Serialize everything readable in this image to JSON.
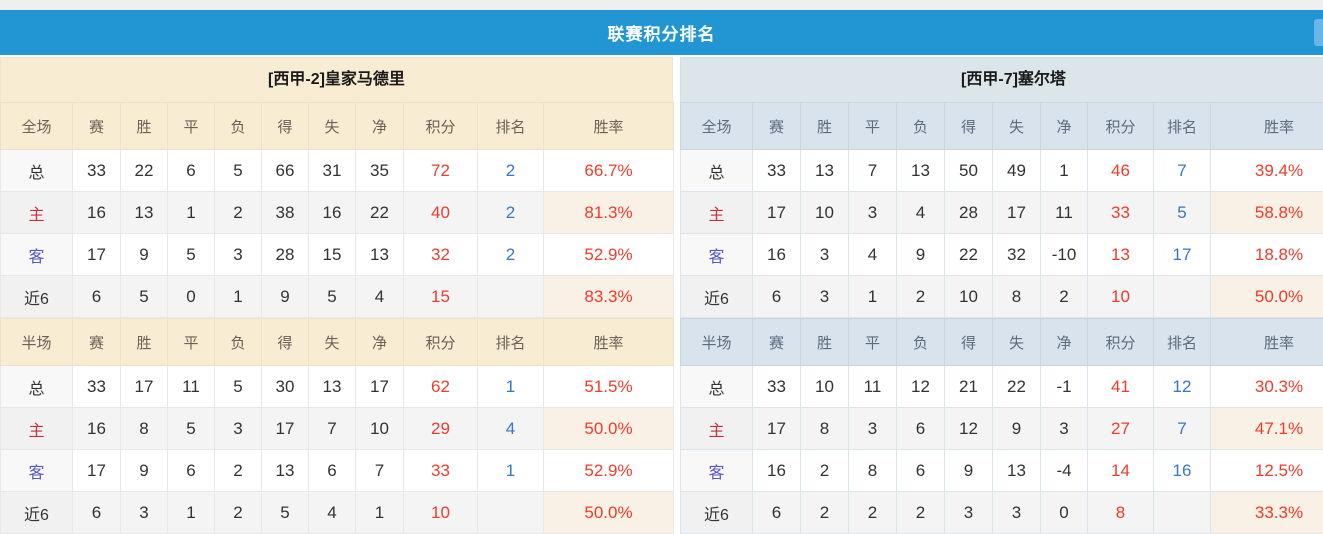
{
  "title": "联赛积分排名",
  "colors": {
    "title_bar": "#2196d3",
    "corner_button": "#6ab5e7",
    "left_header_bg": "#f8ecd2",
    "right_header_bg": "#d9e3ee",
    "points_rate_red": "#f03b2b",
    "rank_blue": "#3577c9",
    "home_label_red": "#c9303e",
    "away_label_blue": "#5a57c8",
    "alt_row_bg": "#f4f4f4",
    "alt_rate_bg": "#faf1e6"
  },
  "columns": {
    "full": [
      "全场",
      "赛",
      "胜",
      "平",
      "负",
      "得",
      "失",
      "净",
      "积分",
      "排名",
      "胜率"
    ],
    "half": [
      "半场",
      "赛",
      "胜",
      "平",
      "负",
      "得",
      "失",
      "净",
      "积分",
      "排名",
      "胜率"
    ]
  },
  "teams": [
    {
      "name": "[西甲-2]皇家马德里",
      "full": {
        "rows": [
          [
            "总",
            "33",
            "22",
            "6",
            "5",
            "66",
            "31",
            "35",
            "72",
            "2",
            "66.7%"
          ],
          [
            "主",
            "16",
            "13",
            "1",
            "2",
            "38",
            "16",
            "22",
            "40",
            "2",
            "81.3%"
          ],
          [
            "客",
            "17",
            "9",
            "5",
            "3",
            "28",
            "15",
            "13",
            "32",
            "2",
            "52.9%"
          ],
          [
            "近6",
            "6",
            "5",
            "0",
            "1",
            "9",
            "5",
            "4",
            "15",
            "",
            "83.3%"
          ]
        ]
      },
      "half": {
        "rows": [
          [
            "总",
            "33",
            "17",
            "11",
            "5",
            "30",
            "13",
            "17",
            "62",
            "1",
            "51.5%"
          ],
          [
            "主",
            "16",
            "8",
            "5",
            "3",
            "17",
            "7",
            "10",
            "29",
            "4",
            "50.0%"
          ],
          [
            "客",
            "17",
            "9",
            "6",
            "2",
            "13",
            "6",
            "7",
            "33",
            "1",
            "52.9%"
          ],
          [
            "近6",
            "6",
            "3",
            "1",
            "2",
            "5",
            "4",
            "1",
            "10",
            "",
            "50.0%"
          ]
        ]
      }
    },
    {
      "name": "[西甲-7]塞尔塔",
      "full": {
        "rows": [
          [
            "总",
            "33",
            "13",
            "7",
            "13",
            "50",
            "49",
            "1",
            "46",
            "7",
            "39.4%"
          ],
          [
            "主",
            "17",
            "10",
            "3",
            "4",
            "28",
            "17",
            "11",
            "33",
            "5",
            "58.8%"
          ],
          [
            "客",
            "16",
            "3",
            "4",
            "9",
            "22",
            "32",
            "-10",
            "13",
            "17",
            "18.8%"
          ],
          [
            "近6",
            "6",
            "3",
            "1",
            "2",
            "10",
            "8",
            "2",
            "10",
            "",
            "50.0%"
          ]
        ]
      },
      "half": {
        "rows": [
          [
            "总",
            "33",
            "10",
            "11",
            "12",
            "21",
            "22",
            "-1",
            "41",
            "12",
            "30.3%"
          ],
          [
            "主",
            "17",
            "8",
            "3",
            "6",
            "12",
            "9",
            "3",
            "27",
            "7",
            "47.1%"
          ],
          [
            "客",
            "16",
            "2",
            "8",
            "6",
            "9",
            "13",
            "-4",
            "14",
            "16",
            "12.5%"
          ],
          [
            "近6",
            "6",
            "2",
            "2",
            "2",
            "3",
            "3",
            "0",
            "8",
            "",
            "33.3%"
          ]
        ]
      }
    }
  ]
}
